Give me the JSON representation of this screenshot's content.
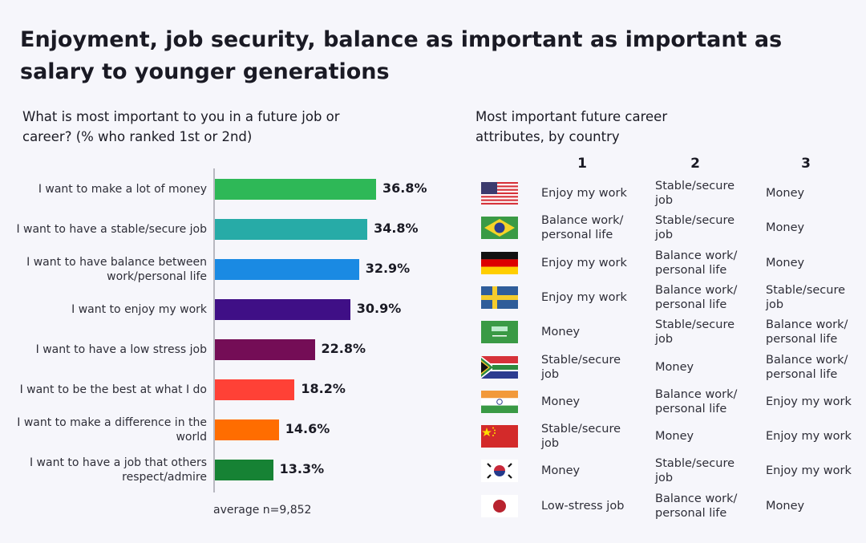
{
  "title": "Enjoyment, job security, balance as important as important as salary to younger generations",
  "chart_data": {
    "type": "bar",
    "orientation": "horizontal",
    "title": "What is most important to you in a future job or career? (% who ranked 1st or 2nd)",
    "categories": [
      "I want to make a lot of money",
      "I want to have a stable/secure job",
      "I want to have balance between work/personal life",
      "I want to enjoy my work",
      "I want to have a low stress job",
      "I want to be the best at what I do",
      "I want to make a difference in the world",
      "I want to have a job that others respect/admire"
    ],
    "values": [
      36.8,
      34.8,
      32.9,
      30.9,
      22.8,
      18.2,
      14.6,
      13.3
    ],
    "value_labels": [
      "36.8%",
      "34.8%",
      "32.9%",
      "30.9%",
      "22.8%",
      "18.2%",
      "14.6%",
      "13.3%"
    ],
    "colors": [
      "#2eb857",
      "#27aba7",
      "#1a8ae3",
      "#3f0f86",
      "#740d56",
      "#ff4136",
      "#ff6d00",
      "#168234"
    ],
    "note": "average n=9,852",
    "xlim": [
      0,
      40
    ]
  },
  "table": {
    "title": "Most important future career attributes, by country",
    "columns": [
      "1",
      "2",
      "3"
    ],
    "rows": [
      {
        "flag": "usa-flag-icon",
        "cells": [
          "Enjoy my work",
          "Stable/secure job",
          "Money"
        ]
      },
      {
        "flag": "brazil-flag-icon",
        "cells": [
          "Balance work/ personal life",
          "Stable/secure job",
          "Money"
        ]
      },
      {
        "flag": "germany-flag-icon",
        "cells": [
          "Enjoy my work",
          "Balance work/ personal life",
          "Money"
        ]
      },
      {
        "flag": "sweden-flag-icon",
        "cells": [
          "Enjoy my work",
          "Balance work/ personal life",
          "Stable/secure job"
        ]
      },
      {
        "flag": "saudi-arabia-flag-icon",
        "cells": [
          "Money",
          "Stable/secure job",
          "Balance work/ personal life"
        ]
      },
      {
        "flag": "south-africa-flag-icon",
        "cells": [
          "Stable/secure job",
          "Money",
          "Balance work/ personal life"
        ]
      },
      {
        "flag": "india-flag-icon",
        "cells": [
          "Money",
          "Balance work/ personal life",
          "Enjoy my work"
        ]
      },
      {
        "flag": "china-flag-icon",
        "cells": [
          "Stable/secure job",
          "Money",
          "Enjoy my work"
        ]
      },
      {
        "flag": "south-korea-flag-icon",
        "cells": [
          "Money",
          "Stable/secure job",
          "Enjoy my work"
        ]
      },
      {
        "flag": "japan-flag-icon",
        "cells": [
          "Low-stress job",
          "Balance work/ personal life",
          "Money"
        ]
      }
    ]
  }
}
